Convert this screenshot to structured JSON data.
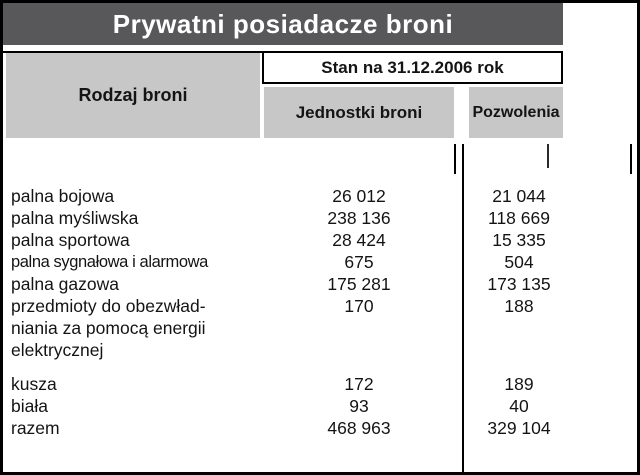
{
  "title": "Prywatni posiadacze broni",
  "header": {
    "row_label_col": "Rodzaj broni",
    "span_label": "Stan na 31.12.2006 rok",
    "col_units": "Jednostki broni",
    "col_permits": "Pozwolenia"
  },
  "table": {
    "rows": [
      {
        "label": "palna bojowa",
        "units": "26 012",
        "permits": "21 044"
      },
      {
        "label": "palna myśliwska",
        "units": "238 136",
        "permits": "118 669"
      },
      {
        "label": "palna sportowa",
        "units": "28 424",
        "permits": "15 335"
      },
      {
        "label": "palna sygnałowa i alarmowa",
        "units": "675",
        "permits": "504"
      },
      {
        "label": "palna gazowa",
        "units": "175 281",
        "permits": "173 135"
      },
      {
        "label": "przedmioty do obezwład-\nniania za pomocą energii\nelektrycznej",
        "units": "170",
        "permits": "188"
      },
      {
        "label": "kusza",
        "units": "172",
        "permits": "189"
      },
      {
        "label": "biała",
        "units": "93",
        "permits": "40"
      },
      {
        "label": "razem",
        "units": "468 963",
        "permits": "329 104"
      }
    ]
  },
  "colors": {
    "title_bar_bg": "#58585a",
    "title_text": "#ffffff",
    "header_cell_bg": "#c7c7c7",
    "border": "#000000",
    "body_text": "#141414"
  }
}
